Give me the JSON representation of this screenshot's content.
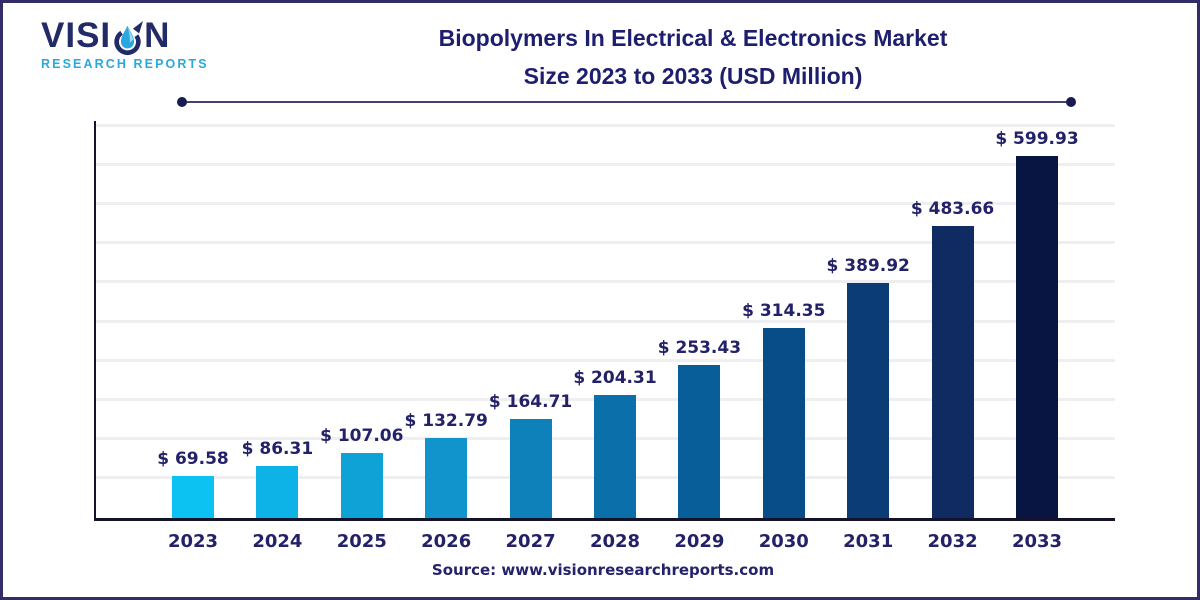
{
  "logo": {
    "brand_prefix": "VISI",
    "brand_suffix": "N",
    "subtitle": "RESEARCH REPORTS",
    "brand_color": "#232a68",
    "subtitle_color": "#29a8e0",
    "drop_icon": "water-drop-swoosh-icon"
  },
  "header": {
    "title_line1": "Biopolymers In Electrical & Electronics Market",
    "title_line2": "Size 2023 to 2033 (USD Million)",
    "title_color": "#1e1e6e"
  },
  "chart_data": {
    "type": "bar",
    "title": "Biopolymers In Electrical & Electronics Market Size 2023 to 2033 (USD Million)",
    "categories": [
      "2023",
      "2024",
      "2025",
      "2026",
      "2027",
      "2028",
      "2029",
      "2030",
      "2031",
      "2032",
      "2033"
    ],
    "values": [
      69.58,
      86.31,
      107.06,
      132.79,
      164.71,
      204.31,
      253.43,
      314.35,
      389.92,
      483.66,
      599.93
    ],
    "labels": [
      "$ 69.58",
      "$ 86.31",
      "$ 107.06",
      "$ 132.79",
      "$ 164.71",
      "$ 204.31",
      "$ 253.43",
      "$ 314.35",
      "$ 389.92",
      "$ 483.66",
      "$ 599.93"
    ],
    "value_prefix": "$ ",
    "unit": "USD Million",
    "xlabel": "",
    "ylabel": "",
    "ylim": [
      0,
      620
    ],
    "grid": "horizontal",
    "legend": "none",
    "bar_colors": [
      "#0bc2f2",
      "#0db2e6",
      "#0fa2d7",
      "#1193cb",
      "#0e81bb",
      "#0b6fa9",
      "#085e99",
      "#094d88",
      "#0c3c76",
      "#0f2b62",
      "#081442"
    ],
    "label_color": "#232268",
    "axis_color": "#13132a",
    "gridline_color": "#efeff2"
  },
  "footer": {
    "source_text": "Source: www.visionresearchreports.com",
    "source_color": "#23226b"
  }
}
